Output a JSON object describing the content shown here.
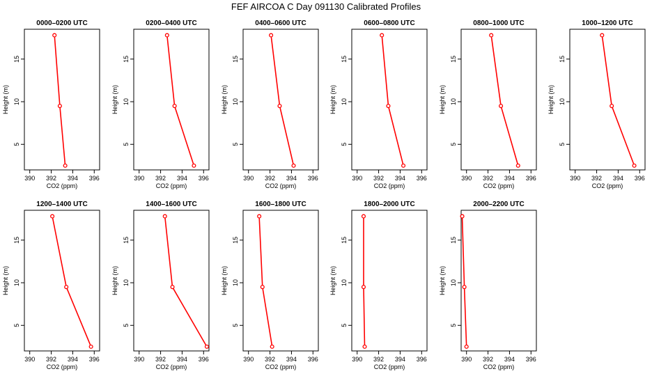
{
  "figure": {
    "title": "FEF AIRCOA C  Day 091130  Calibrated Profiles"
  },
  "chart_data": [
    {
      "type": "line",
      "title": "0000–0200 UTC",
      "xlabel": "CO2 (ppm)",
      "ylabel": "Height (m)",
      "xlim": [
        389.5,
        396.5
      ],
      "ylim": [
        2,
        18.5
      ],
      "xticks": [
        390,
        392,
        394,
        396
      ],
      "yticks": [
        5,
        10,
        15
      ],
      "grid": false,
      "color": "#ff0000",
      "points": [
        {
          "x": 393.3,
          "y": 2.5
        },
        {
          "x": 392.8,
          "y": 9.5
        },
        {
          "x": 392.3,
          "y": 17.8
        }
      ]
    },
    {
      "type": "line",
      "title": "0200–0400 UTC",
      "xlabel": "CO2 (ppm)",
      "ylabel": "Height (m)",
      "xlim": [
        389.5,
        396.5
      ],
      "ylim": [
        2,
        18.5
      ],
      "xticks": [
        390,
        392,
        394,
        396
      ],
      "yticks": [
        5,
        10,
        15
      ],
      "grid": false,
      "color": "#ff0000",
      "points": [
        {
          "x": 395.1,
          "y": 2.5
        },
        {
          "x": 393.3,
          "y": 9.5
        },
        {
          "x": 392.6,
          "y": 17.8
        }
      ]
    },
    {
      "type": "line",
      "title": "0400–0600 UTC",
      "xlabel": "CO2 (ppm)",
      "ylabel": "Height (m)",
      "xlim": [
        389.5,
        396.5
      ],
      "ylim": [
        2,
        18.5
      ],
      "xticks": [
        390,
        392,
        394,
        396
      ],
      "yticks": [
        5,
        10,
        15
      ],
      "grid": false,
      "color": "#ff0000",
      "points": [
        {
          "x": 394.2,
          "y": 2.5
        },
        {
          "x": 392.9,
          "y": 9.5
        },
        {
          "x": 392.1,
          "y": 17.8
        }
      ]
    },
    {
      "type": "line",
      "title": "0600–0800 UTC",
      "xlabel": "CO2 (ppm)",
      "ylabel": "Height (m)",
      "xlim": [
        389.5,
        396.5
      ],
      "ylim": [
        2,
        18.5
      ],
      "xticks": [
        390,
        392,
        394,
        396
      ],
      "yticks": [
        5,
        10,
        15
      ],
      "grid": false,
      "color": "#ff0000",
      "points": [
        {
          "x": 394.3,
          "y": 2.5
        },
        {
          "x": 392.9,
          "y": 9.5
        },
        {
          "x": 392.3,
          "y": 17.8
        }
      ]
    },
    {
      "type": "line",
      "title": "0800–1000 UTC",
      "xlabel": "CO2 (ppm)",
      "ylabel": "Height (m)",
      "xlim": [
        389.5,
        396.5
      ],
      "ylim": [
        2,
        18.5
      ],
      "xticks": [
        390,
        392,
        394,
        396
      ],
      "yticks": [
        5,
        10,
        15
      ],
      "grid": false,
      "color": "#ff0000",
      "points": [
        {
          "x": 394.8,
          "y": 2.5
        },
        {
          "x": 393.2,
          "y": 9.5
        },
        {
          "x": 392.3,
          "y": 17.8
        }
      ]
    },
    {
      "type": "line",
      "title": "1000–1200 UTC",
      "xlabel": "CO2 (ppm)",
      "ylabel": "Height (m)",
      "xlim": [
        389.5,
        396.5
      ],
      "ylim": [
        2,
        18.5
      ],
      "xticks": [
        390,
        392,
        394,
        396
      ],
      "yticks": [
        5,
        10,
        15
      ],
      "grid": false,
      "color": "#ff0000",
      "points": [
        {
          "x": 395.5,
          "y": 2.5
        },
        {
          "x": 393.4,
          "y": 9.5
        },
        {
          "x": 392.5,
          "y": 17.8
        }
      ]
    },
    {
      "type": "line",
      "title": "1200–1400 UTC",
      "xlabel": "CO2 (ppm)",
      "ylabel": "Height (m)",
      "xlim": [
        389.5,
        396.5
      ],
      "ylim": [
        2,
        18.5
      ],
      "xticks": [
        390,
        392,
        394,
        396
      ],
      "yticks": [
        5,
        10,
        15
      ],
      "grid": false,
      "color": "#ff0000",
      "points": [
        {
          "x": 395.7,
          "y": 2.5
        },
        {
          "x": 393.4,
          "y": 9.5
        },
        {
          "x": 392.1,
          "y": 17.8
        }
      ]
    },
    {
      "type": "line",
      "title": "1400–1600 UTC",
      "xlabel": "CO2 (ppm)",
      "ylabel": "Height (m)",
      "xlim": [
        389.5,
        396.5
      ],
      "ylim": [
        2,
        18.5
      ],
      "xticks": [
        390,
        392,
        394,
        396
      ],
      "yticks": [
        5,
        10,
        15
      ],
      "grid": false,
      "color": "#ff0000",
      "points": [
        {
          "x": 396.3,
          "y": 2.5
        },
        {
          "x": 393.1,
          "y": 9.5
        },
        {
          "x": 392.4,
          "y": 17.8
        }
      ]
    },
    {
      "type": "line",
      "title": "1600–1800 UTC",
      "xlabel": "CO2 (ppm)",
      "ylabel": "Height (m)",
      "xlim": [
        389.5,
        396.5
      ],
      "ylim": [
        2,
        18.5
      ],
      "xticks": [
        390,
        392,
        394,
        396
      ],
      "yticks": [
        5,
        10,
        15
      ],
      "grid": false,
      "color": "#ff0000",
      "points": [
        {
          "x": 392.2,
          "y": 2.5
        },
        {
          "x": 391.3,
          "y": 9.5
        },
        {
          "x": 391.0,
          "y": 17.8
        }
      ]
    },
    {
      "type": "line",
      "title": "1800–2000 UTC",
      "xlabel": "CO2 (ppm)",
      "ylabel": "Height (m)",
      "xlim": [
        389.5,
        396.5
      ],
      "ylim": [
        2,
        18.5
      ],
      "xticks": [
        390,
        392,
        394,
        396
      ],
      "yticks": [
        5,
        10,
        15
      ],
      "grid": false,
      "color": "#ff0000",
      "points": [
        {
          "x": 390.7,
          "y": 2.5
        },
        {
          "x": 390.6,
          "y": 9.5
        },
        {
          "x": 390.6,
          "y": 17.8
        }
      ]
    },
    {
      "type": "line",
      "title": "2000–2200 UTC",
      "xlabel": "CO2 (ppm)",
      "ylabel": "Height (m)",
      "xlim": [
        389.5,
        396.5
      ],
      "ylim": [
        2,
        18.5
      ],
      "xticks": [
        390,
        392,
        394,
        396
      ],
      "yticks": [
        5,
        10,
        15
      ],
      "grid": false,
      "color": "#ff0000",
      "points": [
        {
          "x": 390.0,
          "y": 2.5
        },
        {
          "x": 389.8,
          "y": 9.5
        },
        {
          "x": 389.6,
          "y": 17.8
        }
      ]
    }
  ]
}
